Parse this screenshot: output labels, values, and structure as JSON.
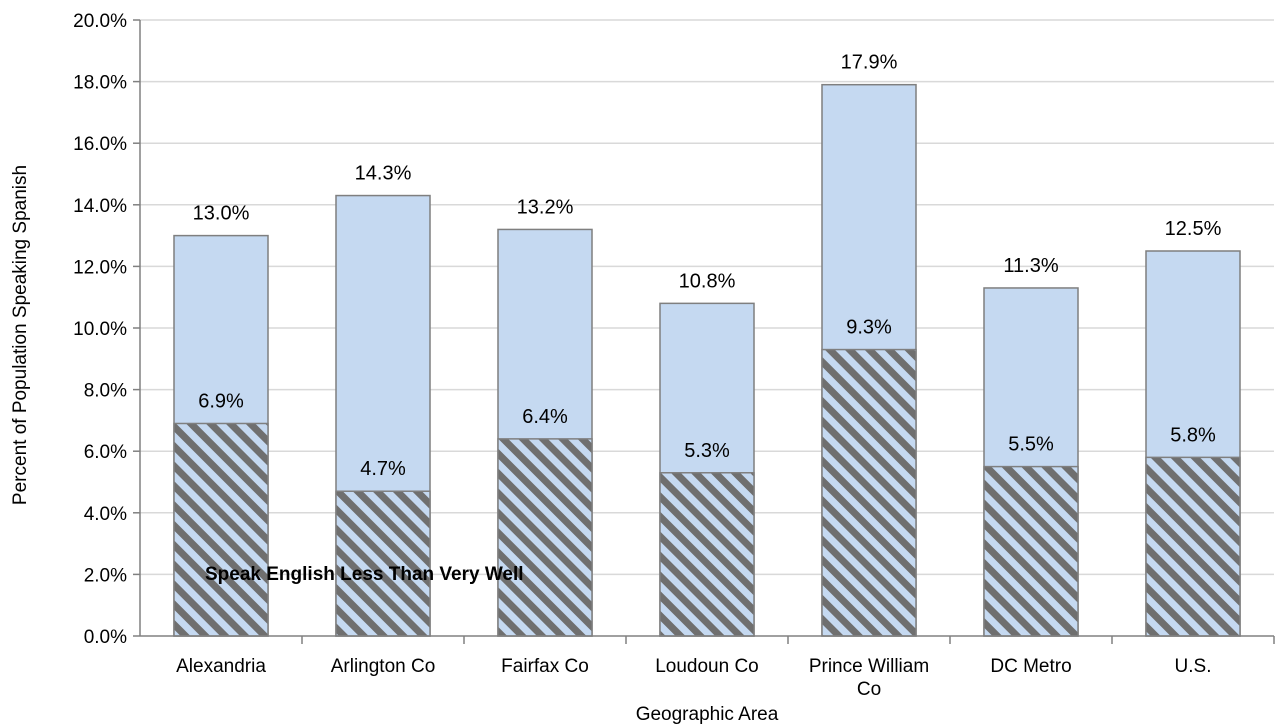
{
  "chart_data": {
    "type": "bar",
    "stacked": false,
    "overlapping": true,
    "categories": [
      "Alexandria",
      "Arlington Co",
      "Fairfax Co",
      "Loudoun Co",
      "Prince William Co",
      "DC Metro",
      "U.S."
    ],
    "series": [
      {
        "values": [
          13.0,
          14.3,
          13.2,
          10.8,
          17.9,
          11.3,
          12.5
        ],
        "labels": [
          "13.0%",
          "14.3%",
          "13.2%",
          "10.8%",
          "17.9%",
          "11.3%",
          "12.5%"
        ],
        "color": "#c5d9f1",
        "pattern": "solid"
      },
      {
        "name": "Speak English Less Than Very Well",
        "values": [
          6.9,
          4.7,
          6.4,
          5.3,
          9.3,
          5.5,
          5.8
        ],
        "labels": [
          "6.9%",
          "4.7%",
          "6.4%",
          "5.3%",
          "9.3%",
          "5.5%",
          "5.8%"
        ],
        "color": "#c5d9f1",
        "pattern": "diagonal-hatch",
        "hatch_color": "#6f6f6f"
      }
    ],
    "title": "",
    "xlabel": "Geographic Area",
    "ylabel": "Percent of Population Speaking Spanish",
    "ylim": [
      0,
      20
    ],
    "yticks": [
      "0.0%",
      "2.0%",
      "4.0%",
      "6.0%",
      "8.0%",
      "10.0%",
      "12.0%",
      "14.0%",
      "16.0%",
      "18.0%",
      "20.0%"
    ],
    "ytick_values": [
      0,
      2,
      4,
      6,
      8,
      10,
      12,
      14,
      16,
      18,
      20
    ],
    "grid": true,
    "annotations": [
      "Speak English Less Than Very Well"
    ],
    "legend": "none",
    "colors": {
      "bar_fill": "#c5d9f1",
      "bar_edge": "#7f7f7f",
      "hatch": "#6f6f6f",
      "grid": "#d9d9d9",
      "axis": "#808080"
    }
  }
}
